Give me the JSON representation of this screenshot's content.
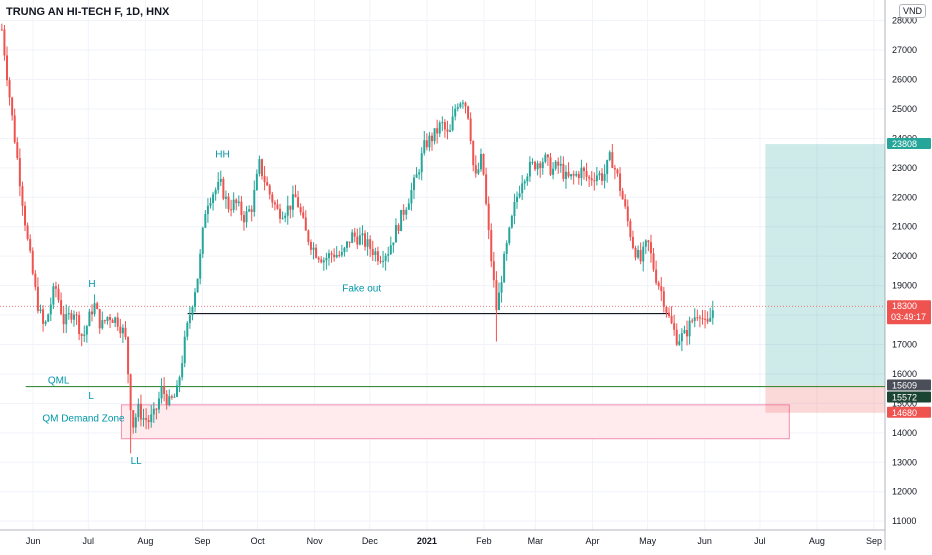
{
  "chart_data": {
    "type": "candlestick",
    "title": "TRUNG AN HI-TECH F, 1D, HNX",
    "currency": "VND",
    "ylim": [
      10700,
      28700
    ],
    "y_ticks": [
      "11000",
      "12000",
      "13000",
      "14000",
      "15000",
      "16000",
      "17000",
      "18000",
      "19000",
      "20000",
      "21000",
      "22000",
      "23000",
      "24000",
      "25000",
      "26000",
      "27000",
      "28000"
    ],
    "x_ticks": [
      {
        "label": "Jun",
        "d": 0
      },
      {
        "label": "Jul",
        "d": 30
      },
      {
        "label": "Aug",
        "d": 61
      },
      {
        "label": "Sep",
        "d": 92
      },
      {
        "label": "Oct",
        "d": 122
      },
      {
        "label": "Nov",
        "d": 153
      },
      {
        "label": "Dec",
        "d": 183
      },
      {
        "label": "2021",
        "d": 214
      },
      {
        "label": "Feb",
        "d": 245
      },
      {
        "label": "Mar",
        "d": 273
      },
      {
        "label": "Apr",
        "d": 304
      },
      {
        "label": "May",
        "d": 334
      },
      {
        "label": "Jun",
        "d": 365
      },
      {
        "label": "Jul",
        "d": 395
      },
      {
        "label": "Aug",
        "d": 426
      },
      {
        "label": "Sep",
        "d": 457
      }
    ],
    "x_range_days": [
      -18,
      463
    ],
    "colors": {
      "up": "#26a69a",
      "down": "#ef5350"
    },
    "price_path": [
      [
        -17,
        27700
      ],
      [
        -12,
        25000
      ],
      [
        -8,
        23000
      ],
      [
        -3,
        20500
      ],
      [
        2,
        18500
      ],
      [
        6,
        17500
      ],
      [
        12,
        19000
      ],
      [
        17,
        17700
      ],
      [
        22,
        18200
      ],
      [
        27,
        17200
      ],
      [
        33,
        18400
      ],
      [
        37,
        17600
      ],
      [
        41,
        18000
      ],
      [
        46,
        17800
      ],
      [
        50,
        17300
      ],
      [
        54,
        14200
      ],
      [
        57,
        14800
      ],
      [
        60,
        14500
      ],
      [
        63,
        14400
      ],
      [
        66,
        14600
      ],
      [
        70,
        15500
      ],
      [
        74,
        15000
      ],
      [
        78,
        15300
      ],
      [
        83,
        17300
      ],
      [
        86,
        18300
      ],
      [
        90,
        19500
      ],
      [
        94,
        21800
      ],
      [
        98,
        22200
      ],
      [
        102,
        22400
      ],
      [
        106,
        21700
      ],
      [
        110,
        21800
      ],
      [
        115,
        21300
      ],
      [
        119,
        21700
      ],
      [
        123,
        23100
      ],
      [
        128,
        22200
      ],
      [
        133,
        21500
      ],
      [
        138,
        21600
      ],
      [
        143,
        22000
      ],
      [
        148,
        20800
      ],
      [
        153,
        20200
      ],
      [
        158,
        19900
      ],
      [
        163,
        20100
      ],
      [
        168,
        20000
      ],
      [
        173,
        20700
      ],
      [
        178,
        20600
      ],
      [
        183,
        20300
      ],
      [
        188,
        20000
      ],
      [
        193,
        20200
      ],
      [
        198,
        21000
      ],
      [
        203,
        21800
      ],
      [
        208,
        22600
      ],
      [
        213,
        23800
      ],
      [
        218,
        24100
      ],
      [
        222,
        24500
      ],
      [
        226,
        24000
      ],
      [
        230,
        25200
      ],
      [
        234,
        25400
      ],
      [
        237,
        24700
      ],
      [
        240,
        22500
      ],
      [
        244,
        23400
      ],
      [
        247,
        21100
      ],
      [
        250,
        19300
      ],
      [
        252,
        18100
      ],
      [
        255,
        19500
      ],
      [
        258,
        20500
      ],
      [
        262,
        21800
      ],
      [
        266,
        22700
      ],
      [
        270,
        23000
      ],
      [
        274,
        23200
      ],
      [
        278,
        23300
      ],
      [
        282,
        22900
      ],
      [
        286,
        23100
      ],
      [
        290,
        22600
      ],
      [
        294,
        22700
      ],
      [
        298,
        22900
      ],
      [
        302,
        22600
      ],
      [
        306,
        22800
      ],
      [
        310,
        22700
      ],
      [
        314,
        23400
      ],
      [
        318,
        22600
      ],
      [
        322,
        21500
      ],
      [
        326,
        20400
      ],
      [
        330,
        19800
      ],
      [
        334,
        20500
      ],
      [
        338,
        19400
      ],
      [
        342,
        18700
      ],
      [
        346,
        17800
      ],
      [
        350,
        17200
      ],
      [
        354,
        17300
      ],
      [
        358,
        17800
      ],
      [
        362,
        18200
      ],
      [
        366,
        17500
      ],
      [
        370,
        18300
      ]
    ],
    "horizontal_lines": [
      {
        "label": "QML",
        "price": 15572,
        "color": "#388e3c"
      },
      {
        "price": 18050,
        "color": "#131722"
      }
    ],
    "zones": [
      {
        "label": "QM Demand Zone",
        "from_price": 13800,
        "to_price": 14950,
        "color": "#ffebee"
      }
    ],
    "position": {
      "entry": 15609,
      "target": 23808,
      "stop": 14680
    },
    "annotations": [
      {
        "text": "HH",
        "d": 99,
        "price": 23350
      },
      {
        "text": "H",
        "d": 30,
        "price": 18950
      },
      {
        "text": "L",
        "d": 30,
        "price": 15150
      },
      {
        "text": "LL",
        "d": 53,
        "price": 12950
      },
      {
        "text": "QML",
        "d": 8,
        "price": 15680
      },
      {
        "text": "Fake out",
        "d": 168,
        "price": 18800
      },
      {
        "text": "QM Demand Zone",
        "d": 5,
        "price": 14380
      }
    ],
    "price_labels": [
      {
        "value": "23808",
        "color": "#26a69a"
      },
      {
        "value": "18300",
        "color": "#ffffff"
      },
      {
        "value": "15609",
        "color": "#4a4e59"
      },
      {
        "value": "15572",
        "color": "#1b4332"
      },
      {
        "value": "14680",
        "color": "#ef5350"
      }
    ],
    "countdown": "03:49:17",
    "last_price": 18300
  }
}
